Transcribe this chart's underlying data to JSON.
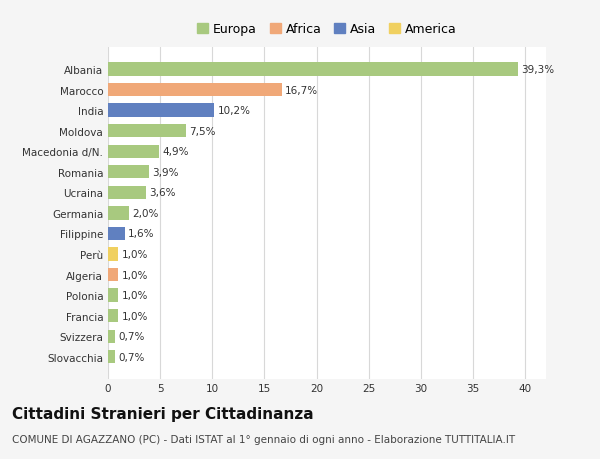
{
  "categories": [
    "Albania",
    "Marocco",
    "India",
    "Moldova",
    "Macedonia d/N.",
    "Romania",
    "Ucraina",
    "Germania",
    "Filippine",
    "Perù",
    "Algeria",
    "Polonia",
    "Francia",
    "Svizzera",
    "Slovacchia"
  ],
  "values": [
    39.3,
    16.7,
    10.2,
    7.5,
    4.9,
    3.9,
    3.6,
    2.0,
    1.6,
    1.0,
    1.0,
    1.0,
    1.0,
    0.7,
    0.7
  ],
  "labels": [
    "39,3%",
    "16,7%",
    "10,2%",
    "7,5%",
    "4,9%",
    "3,9%",
    "3,6%",
    "2,0%",
    "1,6%",
    "1,0%",
    "1,0%",
    "1,0%",
    "1,0%",
    "0,7%",
    "0,7%"
  ],
  "colors": [
    "#a8c97f",
    "#f0a878",
    "#6080c0",
    "#a8c97f",
    "#a8c97f",
    "#a8c97f",
    "#a8c97f",
    "#a8c97f",
    "#6080c0",
    "#f0d060",
    "#f0a878",
    "#a8c97f",
    "#a8c97f",
    "#a8c97f",
    "#a8c97f"
  ],
  "legend_labels": [
    "Europa",
    "Africa",
    "Asia",
    "America"
  ],
  "legend_colors": [
    "#a8c97f",
    "#f0a878",
    "#6080c0",
    "#f0d060"
  ],
  "title": "Cittadini Stranieri per Cittadinanza",
  "subtitle": "COMUNE DI AGAZZANO (PC) - Dati ISTAT al 1° gennaio di ogni anno - Elaborazione TUTTITALIA.IT",
  "xlim": [
    0,
    42
  ],
  "xticks": [
    0,
    5,
    10,
    15,
    20,
    25,
    30,
    35,
    40
  ],
  "background_color": "#f5f5f5",
  "bar_background": "#ffffff",
  "grid_color": "#d8d8d8",
  "title_fontsize": 11,
  "subtitle_fontsize": 7.5,
  "label_fontsize": 7.5,
  "tick_fontsize": 7.5,
  "legend_fontsize": 9
}
